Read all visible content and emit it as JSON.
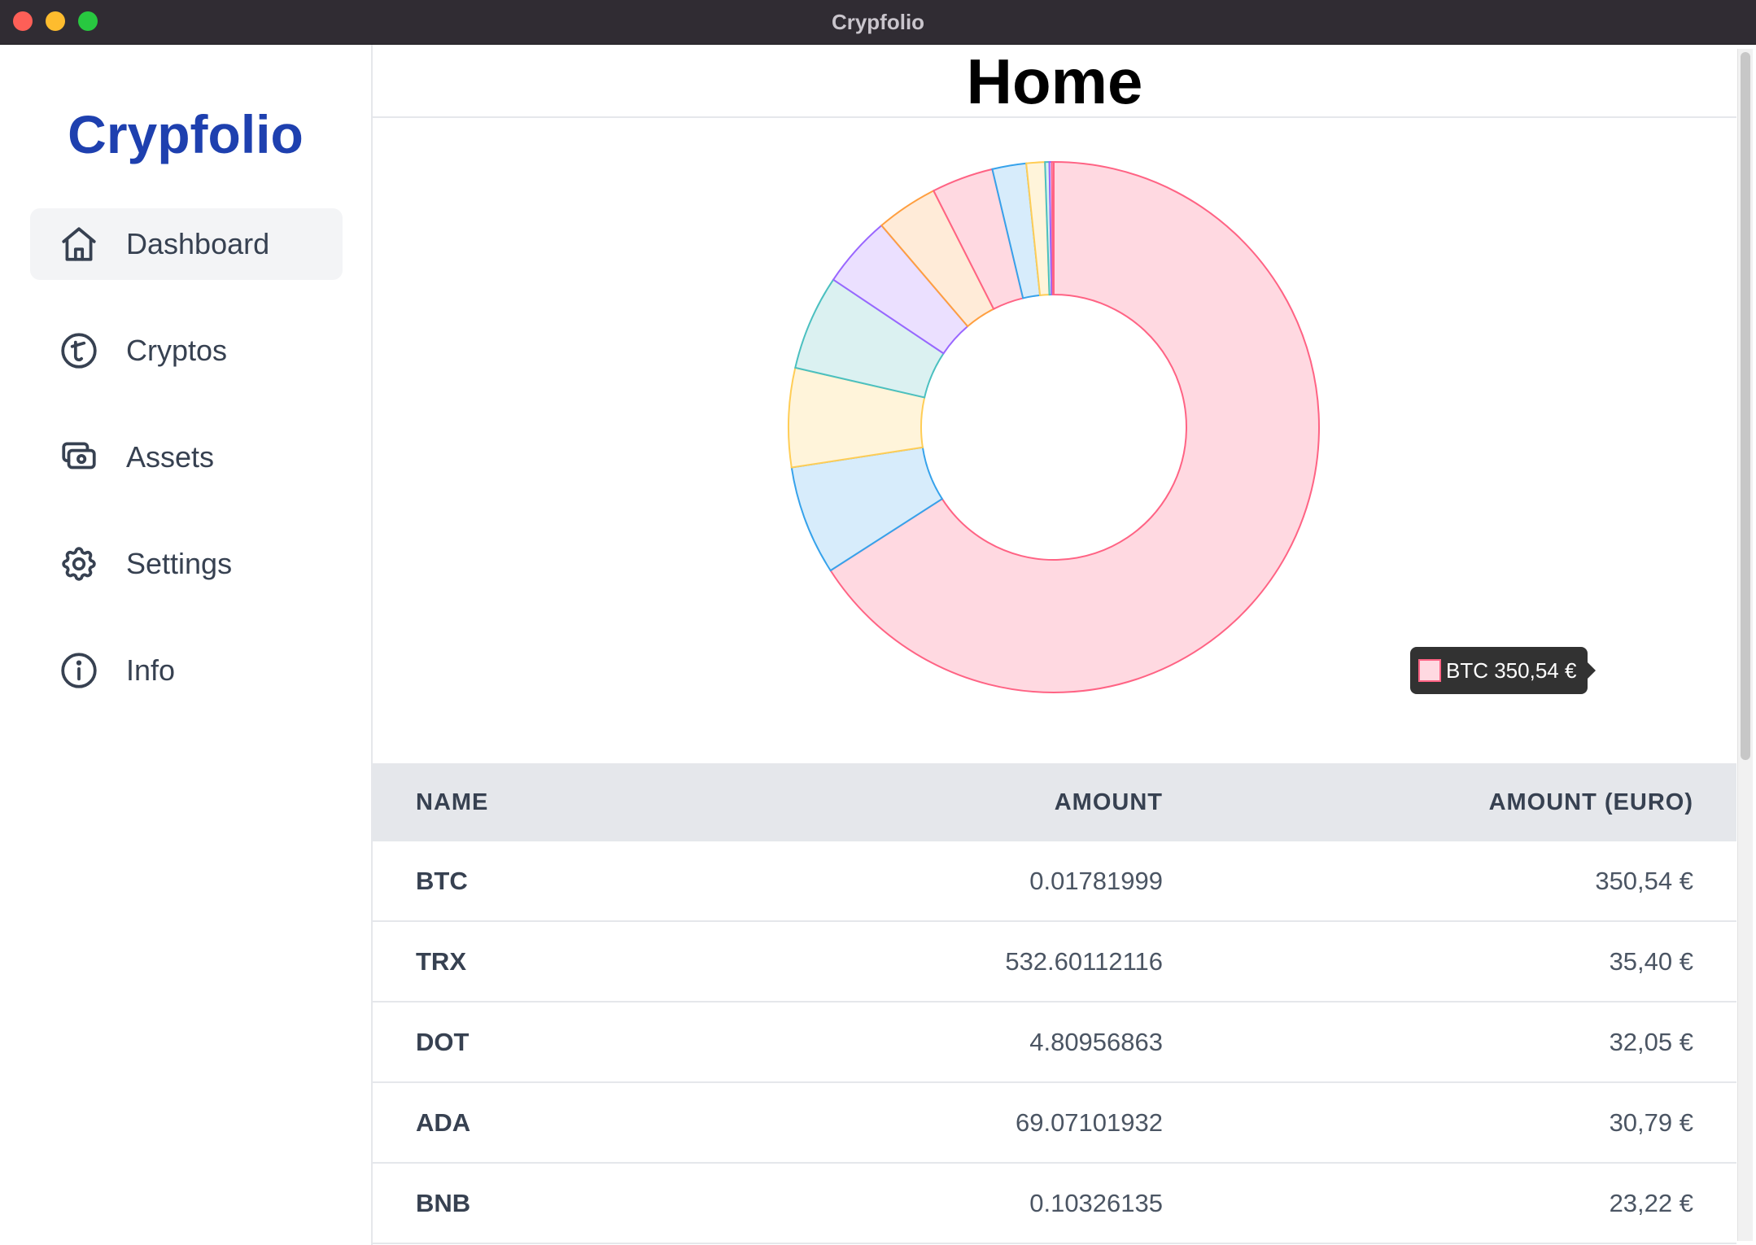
{
  "window": {
    "title": "Crypfolio"
  },
  "sidebar": {
    "brand": "Crypfolio",
    "items": [
      {
        "label": "Dashboard",
        "icon": "home-icon",
        "active": true
      },
      {
        "label": "Cryptos",
        "icon": "crypto-coin-icon",
        "active": false
      },
      {
        "label": "Assets",
        "icon": "cash-icon",
        "active": false
      },
      {
        "label": "Settings",
        "icon": "gear-icon",
        "active": false
      },
      {
        "label": "Info",
        "icon": "info-icon",
        "active": false
      }
    ]
  },
  "main": {
    "title": "Home",
    "tooltip": "BTC 350,54 €"
  },
  "chart_data": {
    "type": "doughnut",
    "series": [
      {
        "label": "BTC",
        "value": 350.54,
        "fill": "#ffd9e1",
        "stroke": "#ff6384"
      },
      {
        "label": "TRX",
        "value": 35.4,
        "fill": "#d7ecfb",
        "stroke": "#36a2eb"
      },
      {
        "label": "DOT",
        "value": 32.05,
        "fill": "#fff4da",
        "stroke": "#ffcd56"
      },
      {
        "label": "ADA",
        "value": 30.79,
        "fill": "#dbf1f1",
        "stroke": "#4bc0c0"
      },
      {
        "label": "BNB",
        "value": 23.22,
        "fill": "#ebe0ff",
        "stroke": "#9966ff"
      },
      {
        "value": 20.0,
        "fill": "#ffebd8",
        "stroke": "#ff9f40"
      },
      {
        "value": 20.0,
        "fill": "#ffd9e1",
        "stroke": "#ff6384"
      },
      {
        "value": 11.0,
        "fill": "#d7ecfb",
        "stroke": "#36a2eb"
      },
      {
        "value": 6.0,
        "fill": "#fff4da",
        "stroke": "#ffcd56"
      },
      {
        "value": 1.4,
        "fill": "#dbf1f1",
        "stroke": "#4bc0c0"
      },
      {
        "value": 0.8,
        "fill": "#ebe0ff",
        "stroke": "#9966ff"
      },
      {
        "value": 0.6,
        "fill": "#ffd9e1",
        "stroke": "#ff6384"
      }
    ]
  },
  "table": {
    "headers": {
      "name": "NAME",
      "amount": "AMOUNT",
      "euro": "AMOUNT (EURO)"
    },
    "rows": [
      {
        "name": "BTC",
        "amount": "0.01781999",
        "euro": "350,54 €"
      },
      {
        "name": "TRX",
        "amount": "532.60112116",
        "euro": "35,40 €"
      },
      {
        "name": "DOT",
        "amount": "4.80956863",
        "euro": "32,05 €"
      },
      {
        "name": "ADA",
        "amount": "69.07101932",
        "euro": "30,79 €"
      },
      {
        "name": "BNB",
        "amount": "0.10326135",
        "euro": "23,22 €"
      }
    ]
  }
}
